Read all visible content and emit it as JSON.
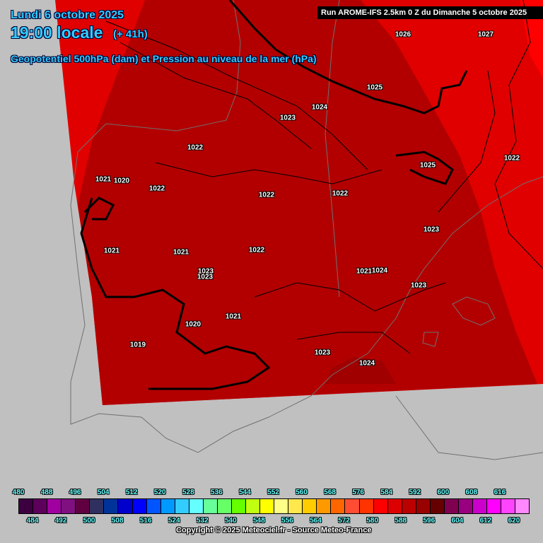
{
  "header": {
    "date": "Lundi 6 octobre 2025",
    "time": "19:00 locale",
    "lead": "(+ 41h)",
    "parameter_title": "Geopotentiel 500hPa (dam) et Pression au niveau de la mer (hPa)",
    "run": "Run AROME-IFS 2.5km 0 Z du Dimanche 5 octobre 2025"
  },
  "map": {
    "background_color": "#c0c0c0",
    "field_colors": {
      "584": "#e00000",
      "588": "#b20000",
      "592": "#a00000",
      "edge": "#ff0000"
    },
    "isobar_labels": [
      "1026",
      "1027",
      "1025",
      "1024",
      "1023",
      "1022",
      "1025",
      "1022",
      "1021",
      "1020",
      "1022",
      "1022",
      "1022",
      "1023",
      "1021",
      "1021",
      "1022",
      "1023",
      "1023",
      "1021",
      "1024",
      "1023",
      "1020",
      "1021",
      "1019",
      "1023",
      "1024"
    ]
  },
  "legend": {
    "values_top": [
      "480",
      "488",
      "496",
      "504",
      "512",
      "520",
      "528",
      "536",
      "544",
      "552",
      "560",
      "568",
      "576",
      "584",
      "592",
      "600",
      "608",
      "616"
    ],
    "values_bottom": [
      "484",
      "492",
      "500",
      "508",
      "516",
      "524",
      "532",
      "540",
      "548",
      "556",
      "564",
      "572",
      "580",
      "588",
      "596",
      "604",
      "612",
      "620"
    ],
    "colors": [
      "#3c0040",
      "#5c005c",
      "#a000a0",
      "#801080",
      "#600040",
      "#303060",
      "#003399",
      "#0000cc",
      "#0000ff",
      "#0055ff",
      "#0099ff",
      "#33ccff",
      "#66ffff",
      "#66ff99",
      "#66ff66",
      "#66ff00",
      "#c0ff10",
      "#ffff00",
      "#ffff88",
      "#ffe84c",
      "#ffcc00",
      "#ff9900",
      "#ff6600",
      "#ff4c33",
      "#ff3300",
      "#ff0000",
      "#dd0000",
      "#bb0000",
      "#990000",
      "#660000",
      "#800050",
      "#990080",
      "#cc00cc",
      "#ff00ff",
      "#ff44ff",
      "#ff88ff"
    ]
  },
  "footer": {
    "copyright": "Copyright © 2025 Meteociel.fr - Source Meteo-France"
  }
}
